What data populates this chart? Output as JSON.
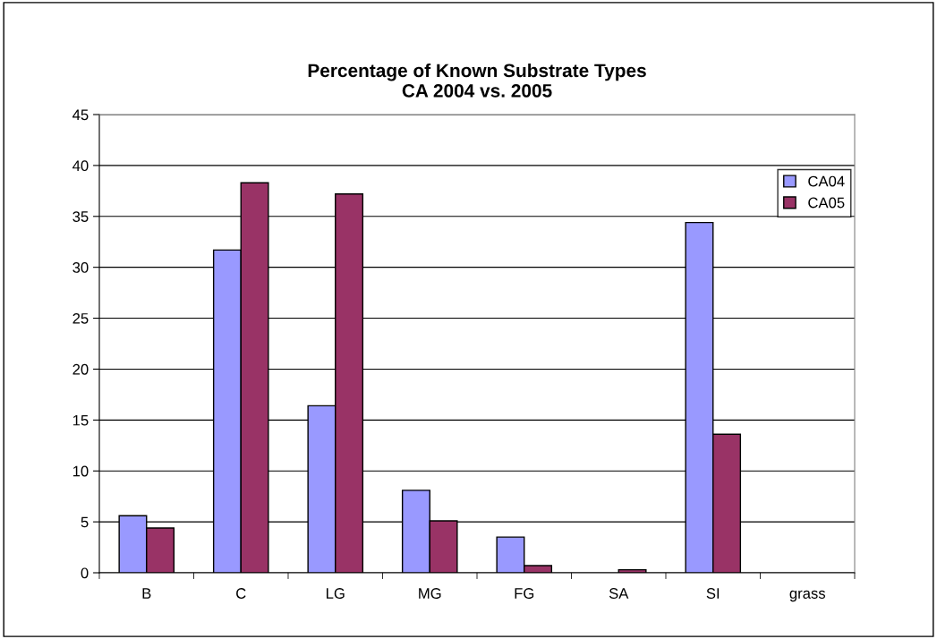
{
  "chart_data": {
    "type": "bar",
    "title": "Percentage of Known Substrate Types\nCA 2004 vs. 2005",
    "categories": [
      "B",
      "C",
      "LG",
      "MG",
      "FG",
      "SA",
      "SI",
      "grass"
    ],
    "series": [
      {
        "name": "CA04",
        "color": "#9999ff",
        "values": [
          5.6,
          31.7,
          16.4,
          8.1,
          3.5,
          0,
          34.4,
          0
        ]
      },
      {
        "name": "CA05",
        "color": "#993366",
        "values": [
          4.4,
          38.3,
          37.2,
          5.1,
          0.7,
          0.3,
          13.6,
          0
        ]
      }
    ],
    "ylim": [
      0,
      45
    ],
    "yticks": [
      0,
      5,
      10,
      15,
      20,
      25,
      30,
      35,
      40,
      45
    ],
    "grid": "y",
    "legend": "right"
  }
}
